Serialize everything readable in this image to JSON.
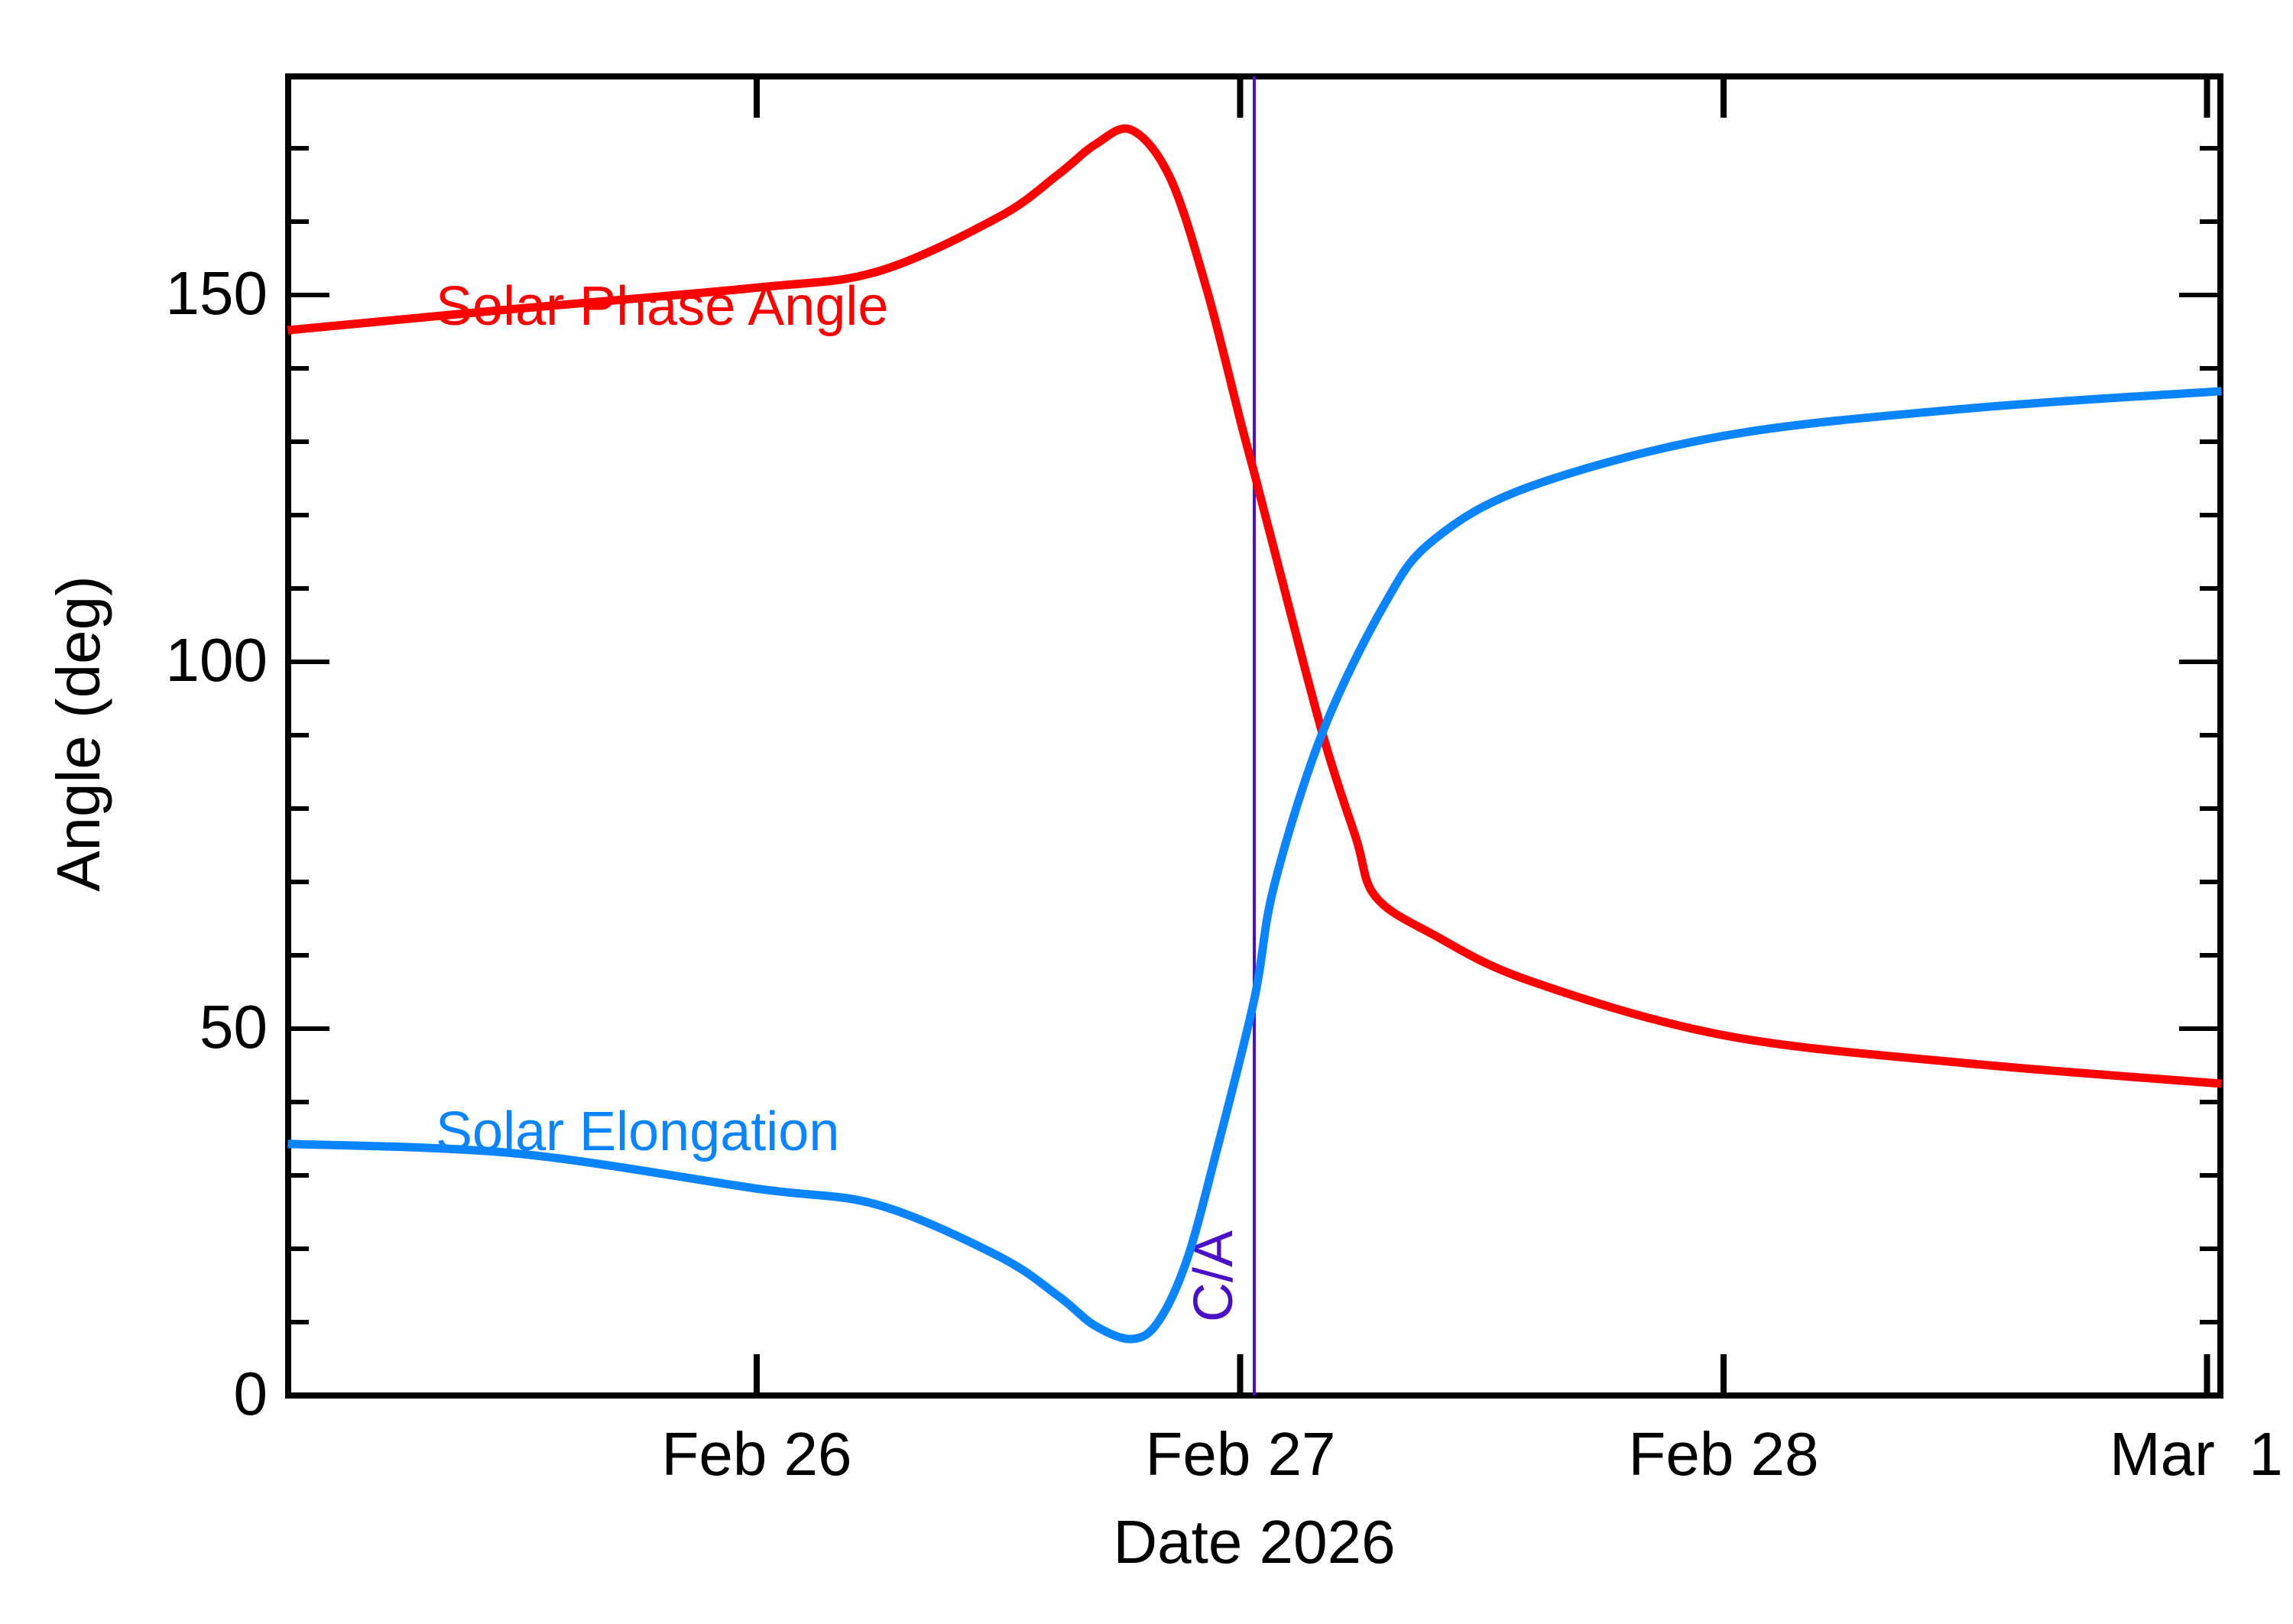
{
  "chart_data": {
    "type": "line",
    "title": "",
    "xlabel": "Date 2026",
    "ylabel": "Angle (deg)",
    "ylim": [
      0,
      180
    ],
    "xlim": [
      "Feb 25 00:43",
      "Mar 1 00:30"
    ],
    "x_unit": "days since Feb 26 00:00 (2026)",
    "x_tick_labels": [
      "Feb 26",
      "Feb 27",
      "Feb 28",
      "Mar  1"
    ],
    "x_tick_values": [
      0,
      1,
      2,
      3
    ],
    "y_tick_labels": [
      "0",
      "50",
      "100",
      "150"
    ],
    "y_tick_values": [
      0,
      50,
      100,
      150
    ],
    "y_minor_tick_step": 10,
    "grid": false,
    "legend": "inline text labels",
    "series": [
      {
        "name": "Solar Phase Angle",
        "color": "#FF0000",
        "x": [
          -0.97,
          -0.5,
          0.0,
          0.25,
          0.5,
          0.625,
          0.7,
          0.775,
          0.855,
          0.93,
          1.0,
          1.029,
          1.07,
          1.17,
          1.24,
          1.28,
          1.4,
          1.6,
          2.0,
          2.5,
          3.03
        ],
        "values": [
          145.2,
          148.1,
          151.0,
          153.2,
          160.6,
          166.5,
          170.5,
          172.5,
          166.0,
          151.0,
          133.0,
          125.8,
          115.4,
          90.3,
          75.9,
          68.0,
          62.8,
          56.5,
          49.1,
          45.3,
          42.5
        ]
      },
      {
        "name": "Solar Elongation",
        "color": "#0A84FF",
        "x": [
          -0.97,
          -0.5,
          0.0,
          0.25,
          0.5,
          0.625,
          0.7,
          0.775,
          0.83,
          0.89,
          0.95,
          1.029,
          1.07,
          1.17,
          1.3,
          1.4,
          1.6,
          2.0,
          2.5,
          3.03
        ],
        "values": [
          34.3,
          33.0,
          28.2,
          26.0,
          19.0,
          13.5,
          9.5,
          7.7,
          10.0,
          18.5,
          33.0,
          53.9,
          69.4,
          90.3,
          108.0,
          116.6,
          123.9,
          130.8,
          134.5,
          136.9
        ]
      }
    ],
    "annotations": [
      {
        "text": "Solar Phase Angle",
        "color": "#FF0000",
        "x": -0.65,
        "y": 145
      },
      {
        "text": "Solar Elongation",
        "color": "#0A84FF",
        "x": -0.65,
        "y": 33
      },
      {
        "text": "C/A",
        "color": "#4B0FC8",
        "vertical_line_x": 1.029,
        "label": "closest approach, ~Feb 27 00:41"
      }
    ]
  },
  "labels": {
    "series_phase": "Solar Phase Angle",
    "series_elong": "Solar Elongation",
    "ca": "C/A",
    "xlabel": "Date 2026",
    "ylabel": "Angle (deg)",
    "xticks": [
      "Feb 26",
      "Feb 27",
      "Feb 28",
      "Mar  1"
    ],
    "yticks": [
      "0",
      "50",
      "100",
      "150"
    ]
  }
}
